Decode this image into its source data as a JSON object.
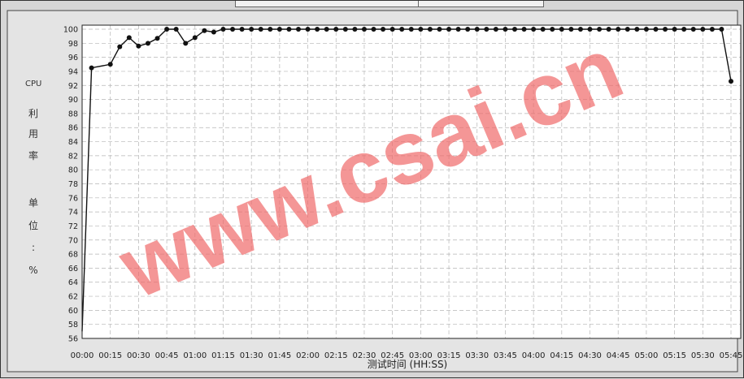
{
  "chart_data": {
    "type": "line",
    "title": "",
    "xlabel": "测试时间",
    "xlabel_unit": "(HH:SS)",
    "ylabel_chars": [
      "CPU",
      "利",
      "用",
      "率",
      "单",
      "位",
      ":",
      "%"
    ],
    "ylim": [
      56,
      100
    ],
    "yticks": [
      56,
      58,
      60,
      62,
      64,
      66,
      68,
      70,
      72,
      74,
      76,
      78,
      80,
      82,
      84,
      86,
      88,
      90,
      92,
      94,
      96,
      98,
      100
    ],
    "xticks": [
      "00:00",
      "00:15",
      "00:30",
      "00:45",
      "01:00",
      "01:15",
      "01:30",
      "01:45",
      "02:00",
      "02:15",
      "02:30",
      "02:45",
      "03:00",
      "03:15",
      "03:30",
      "03:45",
      "04:00",
      "04:15",
      "04:30",
      "04:45",
      "05:00",
      "05:15",
      "05:30",
      "05:45"
    ],
    "xlim_seconds": [
      0,
      345
    ],
    "grid": true,
    "series": [
      {
        "x_seconds": [
          0,
          5,
          15,
          20,
          25,
          30,
          35,
          40,
          45,
          50,
          55,
          60,
          65,
          70,
          75,
          80,
          85,
          90,
          95,
          100,
          105,
          110,
          115,
          120,
          125,
          130,
          135,
          140,
          145,
          150,
          155,
          160,
          165,
          170,
          175,
          180,
          185,
          190,
          195,
          200,
          205,
          210,
          215,
          220,
          225,
          230,
          235,
          240,
          245,
          250,
          255,
          260,
          265,
          270,
          275,
          280,
          285,
          290,
          295,
          300,
          305,
          310,
          315,
          320,
          325,
          330,
          335,
          340,
          345
        ],
        "values": [
          57,
          94.5,
          95,
          97.5,
          98.8,
          97.6,
          98,
          98.7,
          100,
          100,
          98,
          98.8,
          99.8,
          99.6,
          100,
          100,
          100,
          100,
          100,
          100,
          100,
          100,
          100,
          100,
          100,
          100,
          100,
          100,
          100,
          100,
          100,
          100,
          100,
          100,
          100,
          100,
          100,
          100,
          100,
          100,
          100,
          100,
          100,
          100,
          100,
          100,
          100,
          100,
          100,
          100,
          100,
          100,
          100,
          100,
          100,
          100,
          100,
          100,
          100,
          100,
          100,
          100,
          100,
          100,
          100,
          100,
          100,
          100,
          92.6
        ],
        "color": "#111111"
      }
    ],
    "watermark": "www.csai.cn"
  }
}
